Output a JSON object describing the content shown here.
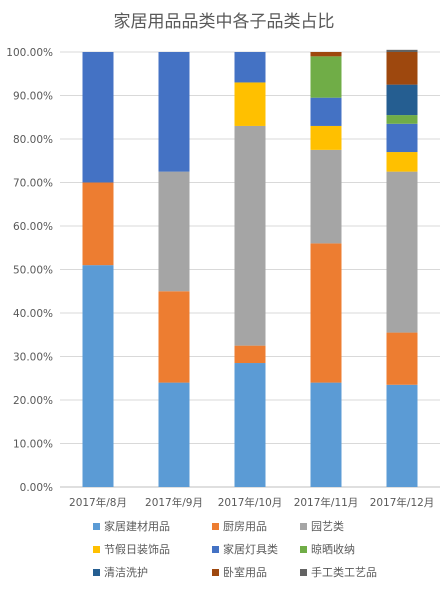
{
  "chart_data": {
    "type": "bar",
    "stacked": "percent",
    "title": "家居用品品类中各子品类占比",
    "xlabel": "",
    "ylabel": "",
    "ylim": [
      0,
      100
    ],
    "y_ticks": [
      "0.00%",
      "10.00%",
      "20.00%",
      "30.00%",
      "40.00%",
      "50.00%",
      "60.00%",
      "70.00%",
      "80.00%",
      "90.00%",
      "100.00%"
    ],
    "grid": true,
    "legend_position": "bottom",
    "categories": [
      "2017年/8月",
      "2017年/9月",
      "2017年/10月",
      "2017年/11月",
      "2017年/12月"
    ],
    "series": [
      {
        "name": "家居建材用品",
        "color": "#5B9BD5",
        "values": [
          51.0,
          24.0,
          28.5,
          24.0,
          23.5
        ]
      },
      {
        "name": "厨房用品",
        "color": "#ED7D31",
        "values": [
          19.0,
          21.0,
          4.0,
          32.0,
          12.0
        ]
      },
      {
        "name": "园艺类",
        "color": "#A5A5A5",
        "values": [
          0,
          27.5,
          50.5,
          21.5,
          37.0
        ]
      },
      {
        "name": "节假日装饰品",
        "color": "#FFC000",
        "values": [
          0,
          0,
          10.0,
          5.5,
          4.5
        ]
      },
      {
        "name": "家居灯具类",
        "color": "#4472C4",
        "values": [
          30.0,
          27.5,
          7.0,
          6.5,
          6.5
        ]
      },
      {
        "name": "晾晒收纳",
        "color": "#70AD47",
        "values": [
          0,
          0,
          0,
          9.5,
          2.0
        ]
      },
      {
        "name": "清洁洗护",
        "color": "#255E91",
        "values": [
          0,
          0,
          0,
          0,
          7.0
        ]
      },
      {
        "name": "卧室用品",
        "color": "#9E480E",
        "values": [
          0,
          0,
          0,
          1.0,
          7.5
        ]
      },
      {
        "name": "手工类工艺品",
        "color": "#636363",
        "values": [
          0,
          0,
          0,
          0,
          0.5
        ]
      }
    ]
  }
}
